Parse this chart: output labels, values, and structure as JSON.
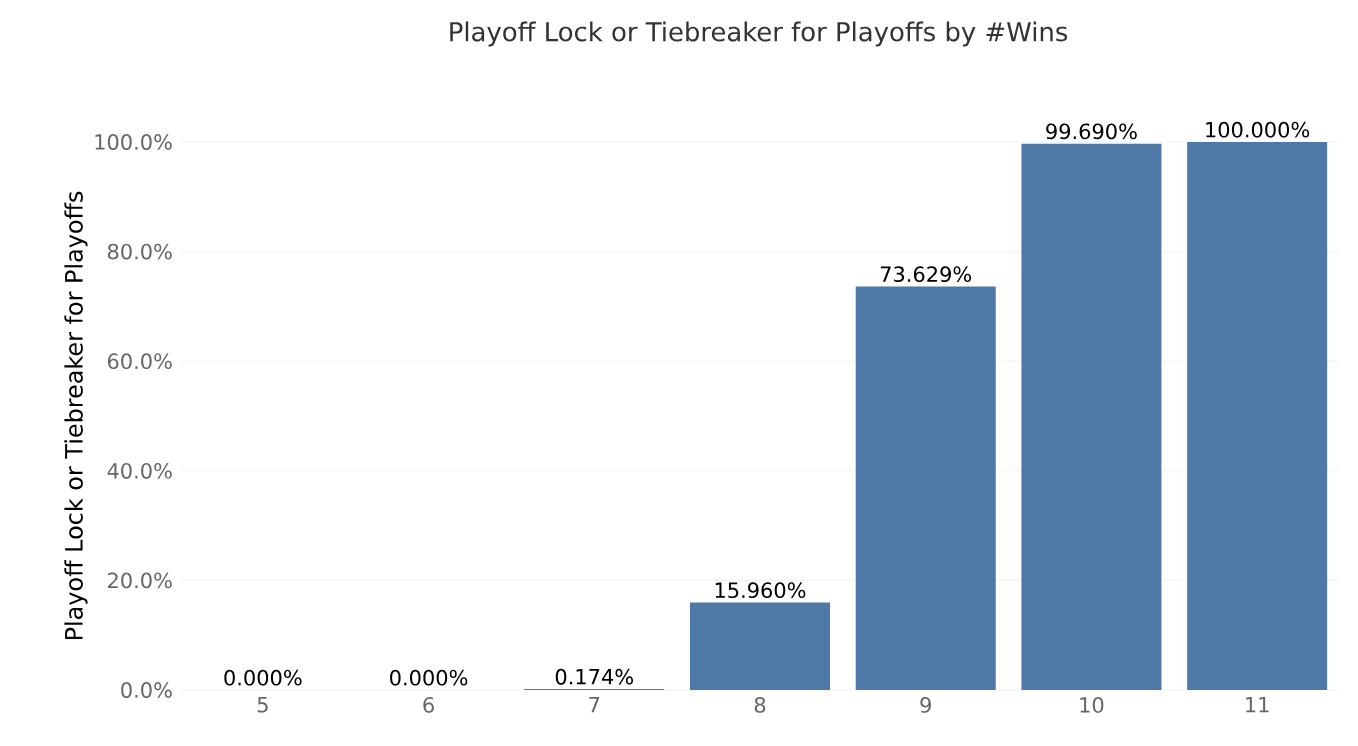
{
  "chart_data": {
    "type": "bar",
    "title": "Playoff Lock or Tiebreaker for Playoffs by #Wins",
    "ylabel": "Playoff Lock or Tiebreaker for Playoffs",
    "categories": [
      "5",
      "6",
      "7",
      "8",
      "9",
      "10",
      "11"
    ],
    "values": [
      0,
      0,
      0.174,
      15.96,
      73.629,
      99.69,
      100.0
    ],
    "value_labels": [
      "0.000%",
      "0.000%",
      "0.174%",
      "15.960%",
      "73.629%",
      "99.690%",
      "100.000%"
    ],
    "color": "#4e79a7",
    "ylim": [
      0,
      100
    ],
    "yticks": [
      {
        "value": 0,
        "label": "0.0%"
      },
      {
        "value": 20,
        "label": "20.0%"
      },
      {
        "value": 40,
        "label": "40.0%"
      },
      {
        "value": 60,
        "label": "60.0%"
      },
      {
        "value": 80,
        "label": "80.0%"
      },
      {
        "value": 100,
        "label": "100.0%"
      }
    ],
    "grid": "y"
  }
}
